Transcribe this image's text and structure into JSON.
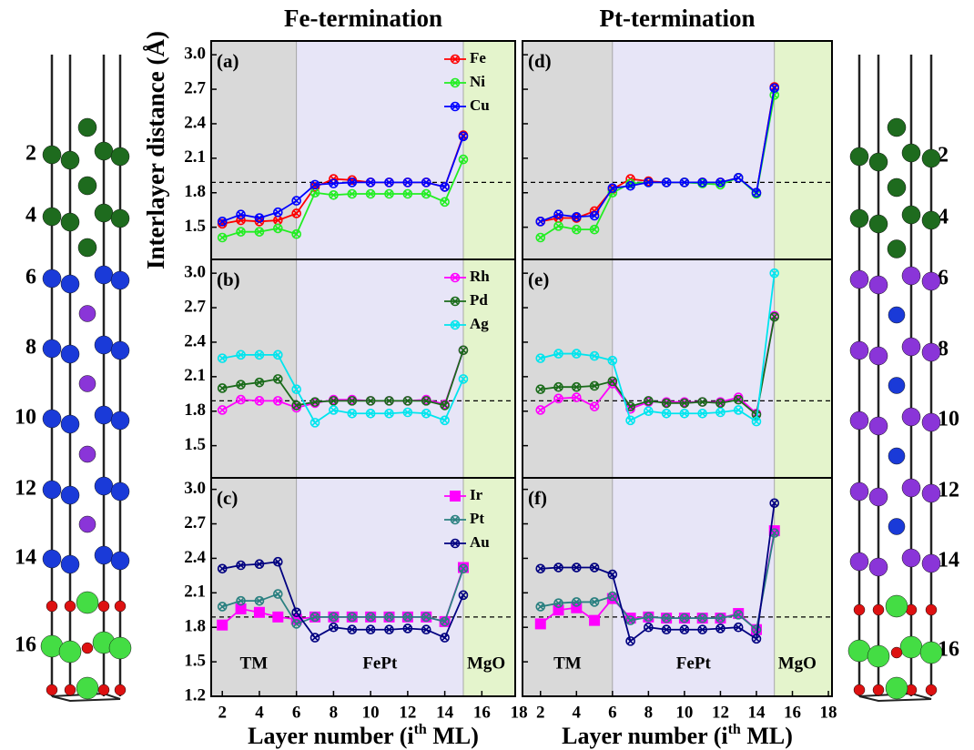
{
  "chart_data": [
    {
      "type": "line",
      "title": "Fe-termination",
      "panel_label": "(a)",
      "y_label": "Interlayer distance (Å)",
      "x": [
        2,
        3,
        4,
        5,
        6,
        7,
        8,
        9,
        10,
        11,
        12,
        13,
        14,
        15
      ],
      "xlim": [
        1.4,
        17.8
      ],
      "ylim": [
        1.22,
        3.12
      ],
      "yticks": [
        1.5,
        1.8,
        2.1,
        2.4,
        2.7,
        {
          "value": 3,
          "label": "3.0"
        }
      ],
      "tick_labels": true,
      "ref_line": 1.89,
      "region_bounds": [
        6,
        15
      ],
      "region_colors": [
        "#d9d9d9",
        "#e7e5f7",
        "#e4f4cc"
      ],
      "legend": "upper right",
      "series": [
        {
          "name": "Fe",
          "color": "#ff0000",
          "marker": "cross-circle",
          "values": [
            1.53,
            1.56,
            1.55,
            1.56,
            1.62,
            1.85,
            1.92,
            1.91,
            1.89,
            1.89,
            1.89,
            1.89,
            1.85,
            2.3
          ]
        },
        {
          "name": "Ni",
          "color": "#22ee22",
          "marker": "cross-circle",
          "values": [
            1.41,
            1.46,
            1.46,
            1.49,
            1.44,
            1.8,
            1.78,
            1.79,
            1.79,
            1.79,
            1.79,
            1.79,
            1.72,
            2.09
          ]
        },
        {
          "name": "Cu",
          "color": "#0000ff",
          "marker": "cross-circle",
          "values": [
            1.55,
            1.61,
            1.58,
            1.63,
            1.73,
            1.87,
            1.88,
            1.89,
            1.89,
            1.89,
            1.89,
            1.89,
            1.85,
            2.29
          ]
        }
      ]
    },
    {
      "type": "line",
      "panel_label": "(b)",
      "x": [
        2,
        3,
        4,
        5,
        6,
        7,
        8,
        9,
        10,
        11,
        12,
        13,
        14,
        15
      ],
      "xlim": [
        1.4,
        17.8
      ],
      "ylim": [
        1.22,
        3.12
      ],
      "yticks": [
        1.5,
        1.8,
        2.1,
        2.4,
        2.7,
        {
          "value": 3,
          "label": "3.0"
        }
      ],
      "tick_labels": true,
      "ref_line": 1.89,
      "region_bounds": [
        6,
        15
      ],
      "region_colors": [
        "#d9d9d9",
        "#e7e5f7",
        "#e4f4cc"
      ],
      "legend": "upper right",
      "series": [
        {
          "name": "Rh",
          "color": "#ff00ff",
          "marker": "cross-circle",
          "values": [
            1.81,
            1.9,
            1.89,
            1.89,
            1.83,
            1.87,
            1.9,
            1.9,
            1.89,
            1.89,
            1.89,
            1.9,
            1.86,
            2.33
          ]
        },
        {
          "name": "Pd",
          "color": "#1a6b1a",
          "marker": "cross-circle",
          "values": [
            2.0,
            2.03,
            2.05,
            2.08,
            1.85,
            1.88,
            1.89,
            1.89,
            1.89,
            1.89,
            1.89,
            1.89,
            1.85,
            2.33
          ]
        },
        {
          "name": "Ag",
          "color": "#00e5ee",
          "marker": "cross-circle",
          "values": [
            2.26,
            2.29,
            2.29,
            2.29,
            1.99,
            1.7,
            1.81,
            1.78,
            1.78,
            1.78,
            1.79,
            1.78,
            1.72,
            2.08
          ]
        }
      ]
    },
    {
      "type": "line",
      "panel_label": "(c)",
      "x_label": [
        "Layer number (i",
        "th",
        " ML)"
      ],
      "x": [
        2,
        3,
        4,
        5,
        6,
        7,
        8,
        9,
        10,
        11,
        12,
        13,
        14,
        15
      ],
      "xlim": [
        1.4,
        17.8
      ],
      "ylim": [
        1.2,
        3.1
      ],
      "yticks": [
        1.2,
        1.5,
        1.8,
        2.1,
        2.4,
        2.7,
        {
          "value": 3,
          "label": "3.0"
        }
      ],
      "xticks": [
        2,
        4,
        6,
        8,
        10,
        12,
        14,
        16,
        18
      ],
      "tick_labels": true,
      "ref_line": 1.89,
      "region_bounds": [
        6,
        15
      ],
      "region_colors": [
        "#d9d9d9",
        "#e7e5f7",
        "#e4f4cc"
      ],
      "region_labels": [
        "TM",
        "FePt",
        "MgO"
      ],
      "legend": "upper right",
      "series": [
        {
          "name": "Ir",
          "color": "#ff00ff",
          "marker": "square",
          "values": [
            1.82,
            1.96,
            1.93,
            1.89,
            1.87,
            1.89,
            1.89,
            1.89,
            1.89,
            1.89,
            1.89,
            1.89,
            1.85,
            2.32
          ]
        },
        {
          "name": "Pt",
          "color": "#2a8080",
          "marker": "cross-circle",
          "values": [
            1.98,
            2.03,
            2.03,
            2.09,
            1.83,
            1.89,
            1.89,
            1.89,
            1.89,
            1.89,
            1.89,
            1.89,
            1.85,
            2.31
          ]
        },
        {
          "name": "Au",
          "color": "#000080",
          "marker": "cross-circle",
          "values": [
            2.31,
            2.34,
            2.35,
            2.37,
            1.93,
            1.71,
            1.8,
            1.78,
            1.78,
            1.78,
            1.79,
            1.78,
            1.71,
            2.08
          ]
        }
      ]
    },
    {
      "type": "line",
      "title": "Pt-termination",
      "panel_label": "(d)",
      "x": [
        2,
        3,
        4,
        5,
        6,
        7,
        8,
        9,
        10,
        11,
        12,
        13,
        14,
        15
      ],
      "xlim": [
        1.0,
        18.2
      ],
      "ylim": [
        1.22,
        3.12
      ],
      "yticks": [
        1.5,
        1.8,
        2.1,
        2.4,
        2.7,
        3
      ],
      "tick_labels": false,
      "ref_line": 1.89,
      "region_bounds": [
        6,
        15
      ],
      "region_colors": [
        "#d9d9d9",
        "#e7e5f7",
        "#e4f4cc"
      ],
      "series": [
        {
          "name": "Fe",
          "color": "#ff0000",
          "marker": "cross-circle",
          "values": [
            1.55,
            1.58,
            1.58,
            1.64,
            1.83,
            1.92,
            1.9,
            1.89,
            1.89,
            1.89,
            1.89,
            1.93,
            1.8,
            2.72
          ]
        },
        {
          "name": "Ni",
          "color": "#22ee22",
          "marker": "cross-circle",
          "values": [
            1.41,
            1.51,
            1.48,
            1.48,
            1.8,
            1.88,
            1.89,
            1.89,
            1.89,
            1.88,
            1.87,
            1.93,
            1.79,
            2.65
          ]
        },
        {
          "name": "Cu",
          "color": "#0000ff",
          "marker": "cross-circle",
          "values": [
            1.55,
            1.61,
            1.59,
            1.6,
            1.84,
            1.86,
            1.89,
            1.89,
            1.89,
            1.89,
            1.89,
            1.93,
            1.8,
            2.71
          ]
        }
      ]
    },
    {
      "type": "line",
      "panel_label": "(e)",
      "x": [
        2,
        3,
        4,
        5,
        6,
        7,
        8,
        9,
        10,
        11,
        12,
        13,
        14,
        15
      ],
      "xlim": [
        1.0,
        18.2
      ],
      "ylim": [
        1.22,
        3.12
      ],
      "yticks": [
        1.5,
        1.8,
        2.1,
        2.4,
        2.7,
        3
      ],
      "tick_labels": false,
      "ref_line": 1.89,
      "region_bounds": [
        6,
        15
      ],
      "region_colors": [
        "#d9d9d9",
        "#e7e5f7",
        "#e4f4cc"
      ],
      "series": [
        {
          "name": "Rh",
          "color": "#ff00ff",
          "marker": "cross-circle",
          "values": [
            1.81,
            1.91,
            1.92,
            1.84,
            2.04,
            1.82,
            1.88,
            1.88,
            1.88,
            1.88,
            1.88,
            1.92,
            1.78,
            2.63
          ]
        },
        {
          "name": "Pd",
          "color": "#1a6b1a",
          "marker": "cross-circle",
          "values": [
            1.99,
            2.01,
            2.01,
            2.02,
            2.06,
            1.84,
            1.89,
            1.87,
            1.87,
            1.88,
            1.87,
            1.9,
            1.77,
            2.62
          ]
        },
        {
          "name": "Ag",
          "color": "#00e5ee",
          "marker": "cross-circle",
          "values": [
            2.26,
            2.3,
            2.3,
            2.28,
            2.24,
            1.72,
            1.8,
            1.78,
            1.78,
            1.78,
            1.79,
            1.81,
            1.71,
            3.0
          ]
        }
      ]
    },
    {
      "type": "line",
      "panel_label": "(f)",
      "x_label": [
        "Layer number (i",
        "th",
        " ML)"
      ],
      "x": [
        2,
        3,
        4,
        5,
        6,
        7,
        8,
        9,
        10,
        11,
        12,
        13,
        14,
        15
      ],
      "xlim": [
        1.0,
        18.2
      ],
      "ylim": [
        1.2,
        3.1
      ],
      "yticks": [
        1.2,
        1.5,
        1.8,
        2.1,
        2.4,
        2.7,
        3
      ],
      "xticks": [
        2,
        4,
        6,
        8,
        10,
        12,
        14,
        16,
        18
      ],
      "tick_labels": false,
      "ref_line": 1.89,
      "region_bounds": [
        6,
        15
      ],
      "region_colors": [
        "#d9d9d9",
        "#e7e5f7",
        "#e4f4cc"
      ],
      "region_labels": [
        "TM",
        "FePt",
        "MgO"
      ],
      "series": [
        {
          "name": "Ir",
          "color": "#ff00ff",
          "marker": "square",
          "values": [
            1.83,
            1.95,
            1.97,
            1.86,
            2.05,
            1.88,
            1.89,
            1.88,
            1.88,
            1.88,
            1.88,
            1.92,
            1.78,
            2.64
          ]
        },
        {
          "name": "Pt",
          "color": "#2a8080",
          "marker": "cross-circle",
          "values": [
            1.98,
            2.01,
            2.02,
            2.02,
            2.07,
            1.86,
            1.89,
            1.88,
            1.88,
            1.88,
            1.88,
            1.91,
            1.78,
            2.62
          ]
        },
        {
          "name": "Au",
          "color": "#000080",
          "marker": "cross-circle",
          "values": [
            2.31,
            2.32,
            2.32,
            2.32,
            2.26,
            1.68,
            1.8,
            1.78,
            1.78,
            1.78,
            1.79,
            1.8,
            1.7,
            2.88
          ]
        }
      ]
    }
  ],
  "structures": {
    "left": {
      "labels": [
        2,
        4,
        6,
        8,
        10,
        12,
        14,
        16
      ]
    },
    "right": {
      "labels": [
        2,
        4,
        6,
        8,
        10,
        12,
        14,
        16
      ]
    }
  }
}
